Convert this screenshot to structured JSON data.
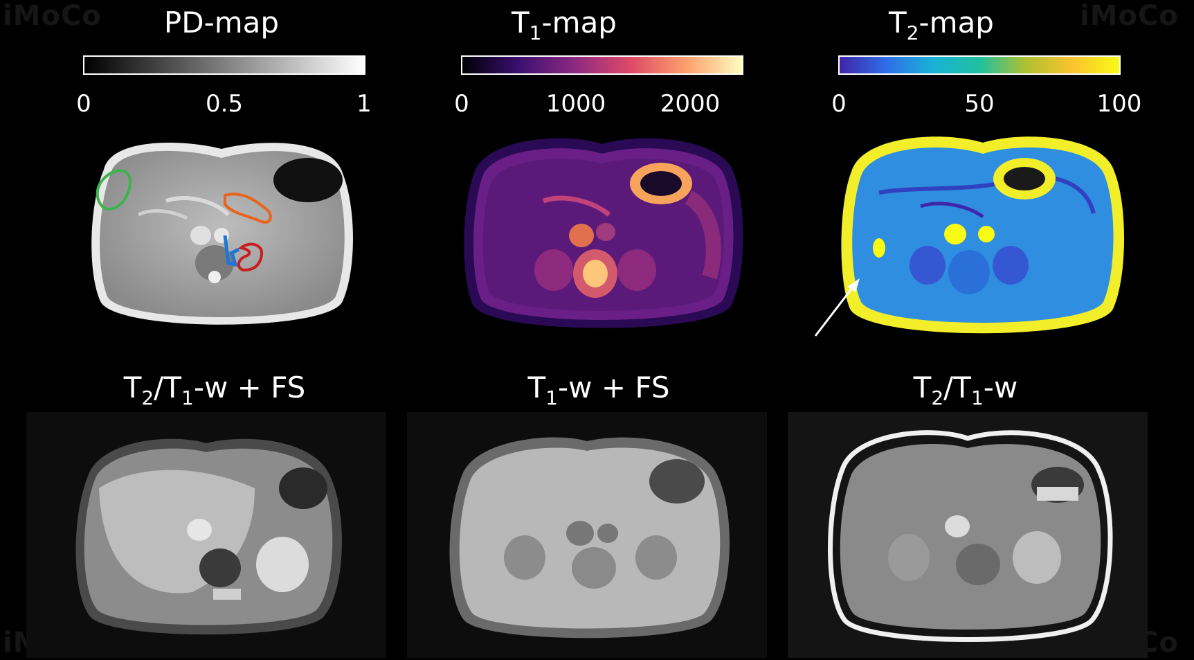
{
  "watermarks": [
    "iMoCo",
    "iMoCo",
    "iMoCo",
    "iMoCo"
  ],
  "maps": [
    {
      "title_main": "PD-map",
      "title_sub": "",
      "title_suffix": "",
      "ticks": [
        "0",
        "0.5",
        "1"
      ],
      "colormap": [
        "#000000",
        "#ffffff"
      ]
    },
    {
      "title_main": "T",
      "title_sub": "1",
      "title_suffix": "-map",
      "ticks": [
        "0",
        "1000",
        "2000"
      ],
      "colormap": [
        "#000004",
        "#3b0f70",
        "#8c2981",
        "#de4968",
        "#fe9f6d",
        "#fcfdbf"
      ]
    },
    {
      "title_main": "T",
      "title_sub": "2",
      "title_suffix": "-map",
      "ticks": [
        "0",
        "50",
        "100"
      ],
      "colormap": [
        "#3e26a8",
        "#2f6ee8",
        "#19b2d6",
        "#20c0a0",
        "#b0c030",
        "#fbc330",
        "#f9fb15"
      ]
    }
  ],
  "weighted": [
    {
      "title_main": "T",
      "sub1": "2",
      "mid": "/T",
      "sub2": "1",
      "suffix": "-w + FS"
    },
    {
      "title_main": "T",
      "sub1": "1",
      "mid": "",
      "sub2": "",
      "suffix": "-w + FS"
    },
    {
      "title_main": "T",
      "sub1": "2",
      "mid": "/T",
      "sub2": "1",
      "suffix": "-w"
    }
  ],
  "roi_colors": {
    "liver": "#3cb44b",
    "spleen": "#e8641e",
    "kidney": "#c81e1e",
    "muscle": "#1f77d4"
  }
}
